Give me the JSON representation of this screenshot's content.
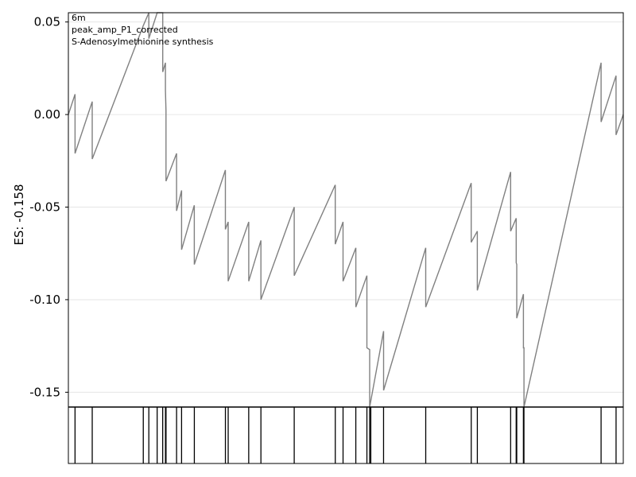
{
  "chart_data": {
    "type": "line",
    "annotations": [
      "6m",
      "peak_amp_P1_corrected",
      "S-Adenosylmethionine synthesis"
    ],
    "ylabel": "ES: -0.158",
    "xlabel": "",
    "ylim": [
      -0.158,
      0.055
    ],
    "yticks": [
      {
        "value": 0.05,
        "label": "0.05"
      },
      {
        "value": 0.0,
        "label": "0.00"
      },
      {
        "value": -0.05,
        "label": "-0.05"
      },
      {
        "value": -0.1,
        "label": "-0.10"
      },
      {
        "value": -0.15,
        "label": "-0.15"
      }
    ],
    "grid": true,
    "colors": {
      "line": "#808080",
      "frame": "#000000",
      "grid": "#e6e6e6",
      "hits": "#000000"
    },
    "series": [
      {
        "points": [
          [
            0.0,
            0.0
          ],
          [
            0.012,
            0.011
          ],
          [
            0.012,
            -0.021
          ],
          [
            0.043,
            0.007
          ],
          [
            0.043,
            -0.024
          ],
          [
            0.135,
            0.048
          ],
          [
            0.135,
            0.048
          ],
          [
            0.145,
            0.055
          ],
          [
            0.145,
            0.041
          ],
          [
            0.16,
            0.055
          ],
          [
            0.16,
            0.055
          ],
          [
            0.17,
            0.055
          ],
          [
            0.17,
            0.023
          ],
          [
            0.175,
            0.028
          ],
          [
            0.175,
            0.013
          ],
          [
            0.176,
            0.002
          ],
          [
            0.176,
            -0.036
          ],
          [
            0.195,
            -0.021
          ],
          [
            0.195,
            -0.052
          ],
          [
            0.204,
            -0.041
          ],
          [
            0.204,
            -0.073
          ],
          [
            0.227,
            -0.049
          ],
          [
            0.227,
            -0.081
          ],
          [
            0.283,
            -0.03
          ],
          [
            0.283,
            -0.062
          ],
          [
            0.288,
            -0.058
          ],
          [
            0.288,
            -0.09
          ],
          [
            0.325,
            -0.058
          ],
          [
            0.325,
            -0.09
          ],
          [
            0.347,
            -0.068
          ],
          [
            0.347,
            -0.1
          ],
          [
            0.407,
            -0.05
          ],
          [
            0.407,
            -0.087
          ],
          [
            0.481,
            -0.038
          ],
          [
            0.481,
            -0.07
          ],
          [
            0.495,
            -0.058
          ],
          [
            0.495,
            -0.09
          ],
          [
            0.518,
            -0.072
          ],
          [
            0.518,
            -0.104
          ],
          [
            0.538,
            -0.087
          ],
          [
            0.538,
            -0.126
          ],
          [
            0.543,
            -0.127
          ],
          [
            0.543,
            -0.158
          ],
          [
            0.568,
            -0.117
          ],
          [
            0.568,
            -0.149
          ],
          [
            0.644,
            -0.072
          ],
          [
            0.644,
            -0.104
          ],
          [
            0.726,
            -0.037
          ],
          [
            0.726,
            -0.069
          ],
          [
            0.737,
            -0.063
          ],
          [
            0.737,
            -0.095
          ],
          [
            0.797,
            -0.031
          ],
          [
            0.797,
            -0.063
          ],
          [
            0.807,
            -0.056
          ],
          [
            0.807,
            -0.08
          ],
          [
            0.808,
            -0.081
          ],
          [
            0.808,
            -0.11
          ],
          [
            0.82,
            -0.097
          ],
          [
            0.82,
            -0.126
          ],
          [
            0.821,
            -0.126
          ],
          [
            0.821,
            -0.158
          ],
          [
            0.96,
            0.028
          ],
          [
            0.96,
            -0.004
          ],
          [
            0.987,
            0.021
          ],
          [
            0.987,
            -0.011
          ],
          [
            1.0,
            0.0
          ]
        ]
      }
    ],
    "hits": [
      0.012,
      0.043,
      0.135,
      0.145,
      0.16,
      0.17,
      0.175,
      0.176,
      0.195,
      0.204,
      0.227,
      0.283,
      0.288,
      0.325,
      0.347,
      0.407,
      0.481,
      0.495,
      0.518,
      0.538,
      0.543,
      0.545,
      0.568,
      0.644,
      0.726,
      0.737,
      0.797,
      0.807,
      0.808,
      0.82,
      0.821,
      0.96,
      0.987
    ]
  }
}
